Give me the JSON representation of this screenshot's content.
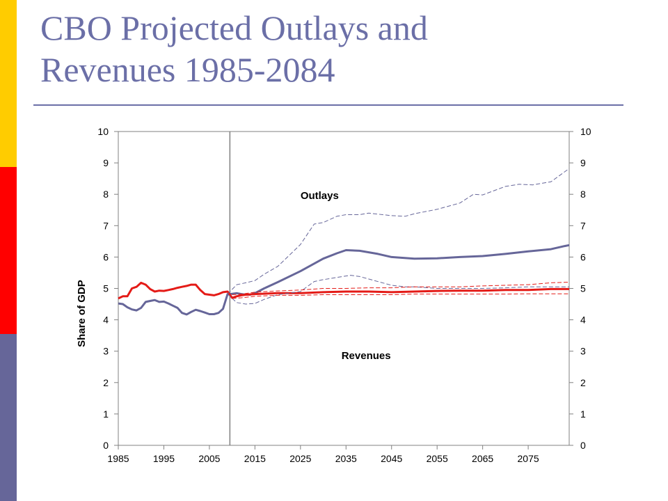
{
  "slide": {
    "title_line1": "CBO Projected Outlays and",
    "title_line2": "Revenues 1985-2084",
    "accent_colors": [
      "#FFCC00",
      "#FF0000",
      "#666699"
    ]
  },
  "chart_data": {
    "type": "line",
    "title": "",
    "xlabel": "",
    "ylabel": "Share of GDP",
    "xlim": [
      1985,
      2084
    ],
    "ylim": [
      0,
      10
    ],
    "yticks": [
      "0",
      "1",
      "2",
      "3",
      "4",
      "5",
      "6",
      "7",
      "8",
      "9",
      "10"
    ],
    "xticks": [
      "1985",
      "1995",
      "2005",
      "2015",
      "2025",
      "2035",
      "2045",
      "2055",
      "2065",
      "2075"
    ],
    "xtick_values": [
      1985,
      1995,
      2005,
      2015,
      2025,
      2035,
      2045,
      2055,
      2065,
      2075
    ],
    "secondary_yaxis": true,
    "vertical_marker_year": 2009.5,
    "grid": false,
    "annotations": [
      {
        "text": "Outlays",
        "series": "outlays"
      },
      {
        "text": "Revenues",
        "series": "revenues"
      }
    ],
    "series": [
      {
        "id": "outlays",
        "name": "Outlays",
        "color": "#666699",
        "style": "solid",
        "points": [
          [
            1985,
            4.52
          ],
          [
            1986,
            4.5
          ],
          [
            1987,
            4.4
          ],
          [
            1988,
            4.33
          ],
          [
            1989,
            4.3
          ],
          [
            1990,
            4.38
          ],
          [
            1991,
            4.57
          ],
          [
            1992,
            4.6
          ],
          [
            1993,
            4.63
          ],
          [
            1994,
            4.57
          ],
          [
            1995,
            4.58
          ],
          [
            1996,
            4.52
          ],
          [
            1997,
            4.45
          ],
          [
            1998,
            4.38
          ],
          [
            1999,
            4.22
          ],
          [
            2000,
            4.17
          ],
          [
            2001,
            4.25
          ],
          [
            2002,
            4.32
          ],
          [
            2003,
            4.28
          ],
          [
            2004,
            4.23
          ],
          [
            2005,
            4.18
          ],
          [
            2006,
            4.18
          ],
          [
            2007,
            4.22
          ],
          [
            2008,
            4.35
          ],
          [
            2009,
            4.82
          ],
          [
            2010,
            4.83
          ],
          [
            2011,
            4.85
          ],
          [
            2012,
            4.82
          ],
          [
            2013,
            4.8
          ],
          [
            2014,
            4.8
          ],
          [
            2015,
            4.85
          ],
          [
            2017,
            5.0
          ],
          [
            2020,
            5.2
          ],
          [
            2025,
            5.55
          ],
          [
            2030,
            5.95
          ],
          [
            2033,
            6.12
          ],
          [
            2035,
            6.22
          ],
          [
            2038,
            6.2
          ],
          [
            2042,
            6.1
          ],
          [
            2045,
            6.0
          ],
          [
            2050,
            5.95
          ],
          [
            2055,
            5.96
          ],
          [
            2060,
            6.0
          ],
          [
            2065,
            6.03
          ],
          [
            2070,
            6.1
          ],
          [
            2075,
            6.18
          ],
          [
            2080,
            6.25
          ],
          [
            2083,
            6.35
          ],
          [
            2084,
            6.38
          ]
        ]
      },
      {
        "id": "revenues",
        "name": "Revenues",
        "color": "#E41B17",
        "style": "solid",
        "points": [
          [
            1985,
            4.68
          ],
          [
            1986,
            4.75
          ],
          [
            1987,
            4.75
          ],
          [
            1988,
            5.0
          ],
          [
            1989,
            5.05
          ],
          [
            1990,
            5.18
          ],
          [
            1991,
            5.12
          ],
          [
            1992,
            4.98
          ],
          [
            1993,
            4.9
          ],
          [
            1994,
            4.93
          ],
          [
            1995,
            4.92
          ],
          [
            1996,
            4.95
          ],
          [
            1997,
            4.98
          ],
          [
            1998,
            5.02
          ],
          [
            1999,
            5.05
          ],
          [
            2000,
            5.08
          ],
          [
            2001,
            5.12
          ],
          [
            2002,
            5.12
          ],
          [
            2003,
            4.95
          ],
          [
            2004,
            4.82
          ],
          [
            2005,
            4.8
          ],
          [
            2006,
            4.78
          ],
          [
            2007,
            4.82
          ],
          [
            2008,
            4.88
          ],
          [
            2009,
            4.9
          ],
          [
            2010,
            4.7
          ],
          [
            2011,
            4.75
          ],
          [
            2012,
            4.78
          ],
          [
            2013,
            4.8
          ],
          [
            2015,
            4.82
          ],
          [
            2020,
            4.85
          ],
          [
            2025,
            4.85
          ],
          [
            2030,
            4.88
          ],
          [
            2035,
            4.9
          ],
          [
            2040,
            4.9
          ],
          [
            2045,
            4.88
          ],
          [
            2050,
            4.9
          ],
          [
            2055,
            4.92
          ],
          [
            2060,
            4.93
          ],
          [
            2065,
            4.93
          ],
          [
            2070,
            4.95
          ],
          [
            2075,
            4.95
          ],
          [
            2080,
            4.98
          ],
          [
            2084,
            4.98
          ]
        ]
      },
      {
        "id": "outlays_upper",
        "color": "#666699",
        "style": "dashed",
        "points": [
          [
            2009,
            4.82
          ],
          [
            2011,
            5.12
          ],
          [
            2013,
            5.18
          ],
          [
            2015,
            5.25
          ],
          [
            2017,
            5.45
          ],
          [
            2020,
            5.7
          ],
          [
            2025,
            6.4
          ],
          [
            2028,
            7.05
          ],
          [
            2030,
            7.1
          ],
          [
            2033,
            7.3
          ],
          [
            2035,
            7.35
          ],
          [
            2038,
            7.35
          ],
          [
            2040,
            7.4
          ],
          [
            2045,
            7.32
          ],
          [
            2048,
            7.3
          ],
          [
            2050,
            7.38
          ],
          [
            2055,
            7.52
          ],
          [
            2060,
            7.72
          ],
          [
            2063,
            8.0
          ],
          [
            2065,
            7.98
          ],
          [
            2070,
            8.25
          ],
          [
            2073,
            8.32
          ],
          [
            2076,
            8.3
          ],
          [
            2080,
            8.4
          ],
          [
            2084,
            8.82
          ]
        ]
      },
      {
        "id": "outlays_lower",
        "color": "#666699",
        "style": "dashed",
        "points": [
          [
            2009,
            4.82
          ],
          [
            2011,
            4.55
          ],
          [
            2013,
            4.5
          ],
          [
            2015,
            4.52
          ],
          [
            2017,
            4.65
          ],
          [
            2020,
            4.8
          ],
          [
            2025,
            4.9
          ],
          [
            2028,
            5.22
          ],
          [
            2030,
            5.28
          ],
          [
            2033,
            5.35
          ],
          [
            2036,
            5.42
          ],
          [
            2038,
            5.38
          ],
          [
            2040,
            5.3
          ],
          [
            2045,
            5.1
          ],
          [
            2048,
            5.05
          ],
          [
            2050,
            5.05
          ],
          [
            2055,
            5.0
          ],
          [
            2060,
            5.0
          ],
          [
            2065,
            5.0
          ],
          [
            2070,
            5.02
          ],
          [
            2075,
            5.05
          ],
          [
            2080,
            5.05
          ],
          [
            2084,
            5.05
          ]
        ]
      },
      {
        "id": "revenues_upper",
        "color": "#E41B17",
        "style": "dashed",
        "points": [
          [
            2010,
            4.8
          ],
          [
            2012,
            4.82
          ],
          [
            2015,
            4.88
          ],
          [
            2020,
            4.92
          ],
          [
            2025,
            4.95
          ],
          [
            2030,
            5.0
          ],
          [
            2035,
            5.0
          ],
          [
            2040,
            5.02
          ],
          [
            2045,
            5.02
          ],
          [
            2050,
            5.05
          ],
          [
            2055,
            5.05
          ],
          [
            2060,
            5.05
          ],
          [
            2065,
            5.08
          ],
          [
            2070,
            5.1
          ],
          [
            2075,
            5.12
          ],
          [
            2080,
            5.18
          ],
          [
            2084,
            5.2
          ]
        ]
      },
      {
        "id": "revenues_lower",
        "color": "#E41B17",
        "style": "dashed",
        "points": [
          [
            2010,
            4.68
          ],
          [
            2012,
            4.7
          ],
          [
            2015,
            4.75
          ],
          [
            2020,
            4.78
          ],
          [
            2025,
            4.78
          ],
          [
            2030,
            4.8
          ],
          [
            2035,
            4.8
          ],
          [
            2040,
            4.8
          ],
          [
            2045,
            4.8
          ],
          [
            2050,
            4.82
          ],
          [
            2055,
            4.82
          ],
          [
            2060,
            4.82
          ],
          [
            2065,
            4.82
          ],
          [
            2070,
            4.82
          ],
          [
            2075,
            4.83
          ],
          [
            2080,
            4.83
          ],
          [
            2084,
            4.83
          ]
        ]
      }
    ]
  }
}
